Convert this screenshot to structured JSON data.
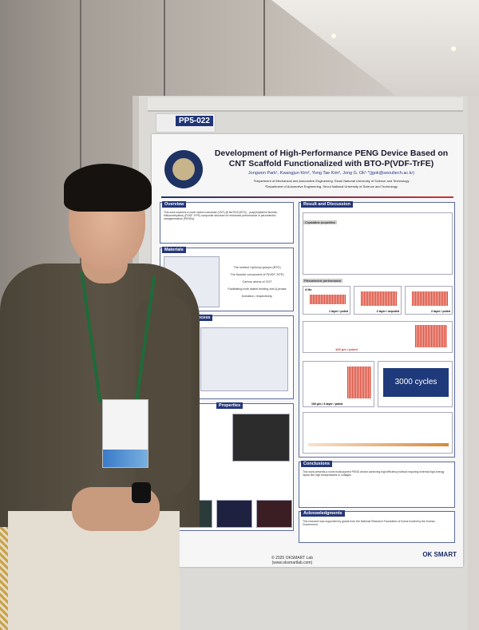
{
  "poster": {
    "board_number": "PP5-022",
    "title_line1": "Development of High-Performance PENG Device Based on",
    "title_line2": "CNT Scaffold Functionalized with BTO-P(VDF-TrFE)",
    "authors": "Jongwon Park¹, Kwangjun Kim², Yong Tae Kim², Jong G. Ok¹·*(jgok@seoultech.ac.kr)",
    "affiliation1": "¹Department of Mechanical and Automotive Engineering, Seoul National University of Science and Technology",
    "affiliation2": "²Department of Automotive Engineering, Seoul National University of Science and Technology",
    "sections": {
      "overview": "Overview",
      "materials": "Materials",
      "process": "Experimental Process",
      "properties": "Properties",
      "results": "Result and Discussion",
      "crystalline": "Crystalline properties",
      "piezo": "Piezoelectric performance",
      "conclusions": "Conclusions",
      "acknowledgments": "Acknowledgments"
    },
    "materials_text": [
      "The surface hydroxyl groups (BTO)",
      "The fluoride component of P(VDF-TrFE)",
      "Carbon atoms of CNT",
      "Facilitating both stable binding and β-phase formation, respectively."
    ],
    "overview_text": "This work explores a novel carbon nanotube (CNT) @ BaTiO3 (BTO) – poly(vinylidene fluoride-trifluoroethylene) (PVDF-TrFE) composite structure for enhanced performance in piezoelectric nanogenerators (PENGs).",
    "conclusions_text": "This work presents a novel multi-layered PENG device achieving high efficiency without requiring external high-energy inputs like high temperatures or voltages.",
    "ack_text": "This research was supported by grants from the National Research Foundation of Korea funded by the Korean Government.",
    "plot_labels": {
      "p1": "1 layer / poled",
      "p2": "2 layer / unpoled",
      "p3": "2 layer / poled",
      "p4": "100 μm / poled",
      "p5": "100 μm / 4 layer / poled",
      "cycles": "3000 cycles",
      "hz": "4 Hz"
    },
    "footer_copyright": "© 2025 OKSMART Lab",
    "footer_url": "(www.oksmartlab.com)",
    "lab_logo": "OK SMART LAB"
  },
  "colors": {
    "poster_header": "#24377a",
    "lanyard": "#1e6b3a",
    "shirt": "#524a3d"
  }
}
